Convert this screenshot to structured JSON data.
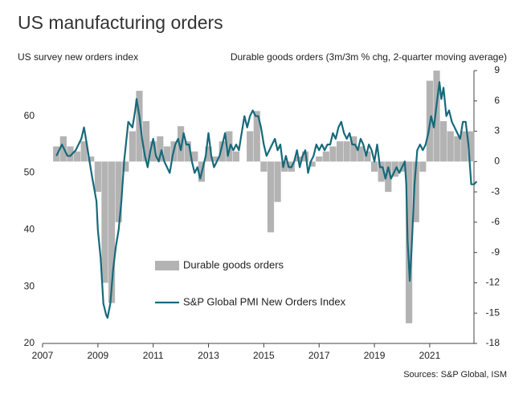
{
  "chart_data": {
    "type": "combo",
    "title": "US manufacturing orders",
    "y_label": "US survey new orders index",
    "y2_label": "Durable goods orders (3m/3m % chg, 2-quarter moving average)",
    "source": "Sources: S&P Global, ISM",
    "xlim": [
      2007,
      2022.6
    ],
    "xticks": [
      2007,
      2009,
      2011,
      2013,
      2015,
      2017,
      2019,
      2021
    ],
    "ylim": [
      20,
      68
    ],
    "yticks": [
      20,
      30,
      40,
      50,
      60
    ],
    "y2lim": [
      -18,
      9
    ],
    "y2ticks": [
      -18,
      -15,
      -12,
      -9,
      -6,
      -3,
      0,
      3,
      6,
      9
    ],
    "series": [
      {
        "name": "Durable goods orders",
        "type": "bar",
        "axis": "y2",
        "color": "#b3b3b3",
        "x": [
          2007.5,
          2007.75,
          2008.0,
          2008.25,
          2008.5,
          2008.75,
          2009.0,
          2009.25,
          2009.5,
          2009.75,
          2010.0,
          2010.25,
          2010.5,
          2010.75,
          2011.0,
          2011.25,
          2011.5,
          2011.75,
          2012.0,
          2012.25,
          2012.5,
          2012.75,
          2013.0,
          2013.25,
          2013.5,
          2013.75,
          2014.0,
          2014.25,
          2014.5,
          2014.75,
          2015.0,
          2015.25,
          2015.5,
          2015.75,
          2016.0,
          2016.25,
          2016.5,
          2016.75,
          2017.0,
          2017.25,
          2017.5,
          2017.75,
          2018.0,
          2018.25,
          2018.5,
          2018.75,
          2019.0,
          2019.25,
          2019.5,
          2019.75,
          2020.0,
          2020.25,
          2020.5,
          2020.75,
          2021.0,
          2021.25,
          2021.5,
          2021.75,
          2022.0,
          2022.25,
          2022.5
        ],
        "values": [
          1.5,
          2.5,
          1.5,
          1.0,
          2,
          0.5,
          -3,
          -12,
          -14,
          -6,
          -1,
          3,
          7,
          4,
          2,
          2.5,
          1.5,
          2,
          3.5,
          2,
          1,
          -2,
          1.5,
          0.5,
          2,
          3,
          1,
          0,
          3,
          5,
          -1,
          -7,
          -4,
          -1,
          -1,
          0.5,
          1,
          -0.5,
          0.5,
          1,
          1.5,
          2,
          2,
          2.5,
          1.5,
          1,
          -1,
          -2,
          -3,
          -1.5,
          -1,
          -16,
          -6,
          -1,
          8,
          9,
          4,
          3,
          2.5,
          3,
          3
        ]
      },
      {
        "name": "S&P Global PMI New Orders Index",
        "type": "line",
        "axis": "y",
        "color": "#16697a",
        "x": [
          2007.5,
          2007.7,
          2007.9,
          2008.0,
          2008.2,
          2008.4,
          2008.5,
          2008.6,
          2008.7,
          2008.8,
          2008.95,
          2009.0,
          2009.1,
          2009.2,
          2009.3,
          2009.35,
          2009.45,
          2009.55,
          2009.65,
          2009.75,
          2009.85,
          2009.95,
          2010.1,
          2010.25,
          2010.35,
          2010.4,
          2010.5,
          2010.6,
          2010.7,
          2010.8,
          2010.9,
          2011.0,
          2011.1,
          2011.2,
          2011.3,
          2011.4,
          2011.5,
          2011.6,
          2011.7,
          2011.8,
          2011.9,
          2012.0,
          2012.1,
          2012.2,
          2012.3,
          2012.4,
          2012.5,
          2012.6,
          2012.7,
          2012.8,
          2012.9,
          2013.0,
          2013.1,
          2013.2,
          2013.3,
          2013.4,
          2013.5,
          2013.6,
          2013.7,
          2013.8,
          2013.9,
          2014.0,
          2014.1,
          2014.2,
          2014.3,
          2014.4,
          2014.5,
          2014.6,
          2014.7,
          2014.8,
          2014.9,
          2015.0,
          2015.1,
          2015.2,
          2015.3,
          2015.4,
          2015.5,
          2015.6,
          2015.7,
          2015.8,
          2015.9,
          2016.0,
          2016.1,
          2016.2,
          2016.3,
          2016.4,
          2016.5,
          2016.6,
          2016.7,
          2016.8,
          2016.9,
          2017.0,
          2017.1,
          2017.2,
          2017.3,
          2017.4,
          2017.5,
          2017.6,
          2017.7,
          2017.8,
          2017.9,
          2018.0,
          2018.1,
          2018.2,
          2018.3,
          2018.4,
          2018.5,
          2018.6,
          2018.7,
          2018.8,
          2018.9,
          2019.0,
          2019.1,
          2019.2,
          2019.3,
          2019.4,
          2019.5,
          2019.6,
          2019.7,
          2019.8,
          2019.9,
          2020.0,
          2020.1,
          2020.15,
          2020.2,
          2020.28,
          2020.35,
          2020.45,
          2020.55,
          2020.65,
          2020.75,
          2020.85,
          2020.95,
          2021.05,
          2021.15,
          2021.25,
          2021.35,
          2021.42,
          2021.5,
          2021.6,
          2021.7,
          2021.8,
          2021.9,
          2022.0,
          2022.1,
          2022.2,
          2022.3,
          2022.4,
          2022.5,
          2022.6,
          2022.7
        ],
        "values": [
          53,
          55,
          53,
          53,
          54,
          56,
          58,
          55,
          52,
          49,
          45,
          40,
          35,
          27,
          25,
          24.5,
          27,
          33,
          37,
          40,
          45,
          52,
          59,
          58,
          61,
          63,
          60,
          56,
          53,
          51,
          54,
          56,
          53,
          52,
          54,
          52,
          51,
          50,
          53,
          55,
          56,
          54,
          57,
          55,
          55,
          52,
          50,
          51,
          49,
          51,
          53,
          57,
          53,
          51,
          52,
          53,
          55,
          57,
          53,
          55,
          54,
          55,
          54,
          57,
          60,
          58,
          60,
          61,
          60,
          60,
          58,
          55,
          53,
          54,
          55,
          56,
          54,
          55,
          51,
          53,
          51,
          51,
          52,
          54,
          51,
          53,
          54,
          50,
          52,
          53,
          55,
          54,
          55,
          54,
          55,
          55,
          57,
          56,
          58,
          59,
          57,
          56,
          57,
          55,
          55,
          54,
          56,
          55,
          53,
          55,
          54,
          52,
          55,
          51,
          51,
          49,
          51,
          49,
          50,
          51,
          50,
          51,
          52,
          48,
          38,
          31,
          37,
          48,
          54,
          55,
          54,
          55,
          57,
          60,
          58,
          62,
          66,
          63,
          65,
          60,
          61,
          59,
          58,
          57,
          56,
          59,
          59,
          55,
          48,
          48,
          48.5
        ]
      }
    ]
  }
}
